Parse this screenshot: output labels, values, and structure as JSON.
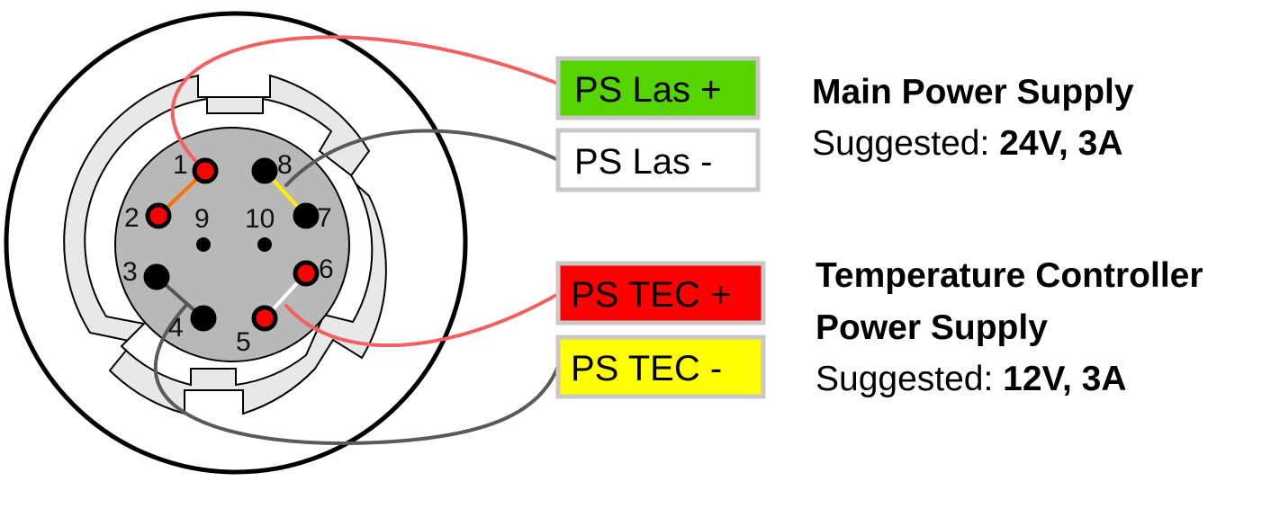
{
  "connector": {
    "pins": [
      {
        "number": "1",
        "color": "#ff0000"
      },
      {
        "number": "2",
        "color": "#ff0000"
      },
      {
        "number": "3",
        "color": "#000000"
      },
      {
        "number": "4",
        "color": "#000000"
      },
      {
        "number": "5",
        "color": "#ff0000"
      },
      {
        "number": "6",
        "color": "#ff0000"
      },
      {
        "number": "7",
        "color": "#000000"
      },
      {
        "number": "8",
        "color": "#000000"
      },
      {
        "number": "9",
        "color": "#000000"
      },
      {
        "number": "10",
        "color": "#000000"
      }
    ],
    "jumpers": [
      {
        "from": "1",
        "to": "2",
        "color": "#ff7000"
      },
      {
        "from": "8",
        "to": "7",
        "color": "#ffee00"
      },
      {
        "from": "3",
        "to": "4",
        "color": "#555555"
      },
      {
        "from": "5",
        "to": "6",
        "color": "#ffffff"
      }
    ]
  },
  "terminals": [
    {
      "label": "PS Las +",
      "fill": "#55d400",
      "wire_color": "#f26060",
      "pin": "1"
    },
    {
      "label": "PS Las -",
      "fill": "#ffffff",
      "wire_color": "#5a5a5a",
      "pin": "7"
    },
    {
      "label": "PS TEC +",
      "fill": "#ff0000",
      "wire_color": "#f26060",
      "pin": "6"
    },
    {
      "label": "PS TEC -",
      "fill": "#ffff00",
      "wire_color": "#5a5a5a",
      "pin": "4"
    }
  ],
  "main_supply": {
    "title": "Main Power Supply",
    "suggested_label": "Suggested:",
    "suggested_value": "24V, 3A"
  },
  "tec_supply": {
    "title_line1": "Temperature Controller",
    "title_line2": "Power Supply",
    "suggested_label": "Suggested:",
    "suggested_value": "12V, 3A"
  }
}
